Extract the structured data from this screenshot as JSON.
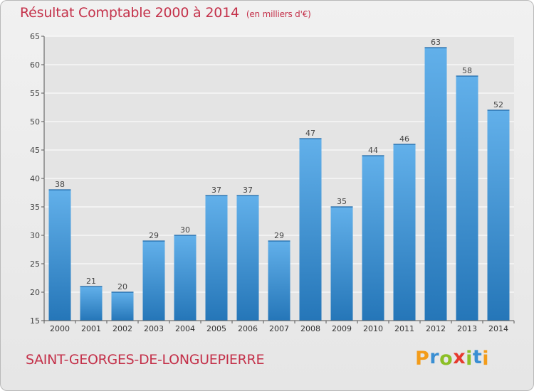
{
  "header": {
    "title": "Résultat Comptable 2000 à 2014",
    "subtitle": "(en milliers d'€)"
  },
  "footer": {
    "place": "SAINT-GEORGES-DE-LONGUEPIERRE",
    "logo_letters": [
      "P",
      "r",
      "o",
      "x",
      "i",
      "t",
      "i"
    ],
    "logo_colors": [
      "#f39c1a",
      "#3a8fd3",
      "#8cbf26",
      "#e63a2e",
      "#8cbf26",
      "#3a8fd3",
      "#f39c1a"
    ]
  },
  "colors": {
    "bar_light": "#62b0ea",
    "bar_dark": "#2576b8",
    "accent": "#c4314a",
    "grid": "#ffffff",
    "plot_bg": "#e4e4e4"
  },
  "chart_data": {
    "type": "bar",
    "categories": [
      "2000",
      "2001",
      "2002",
      "2003",
      "2004",
      "2005",
      "2006",
      "2007",
      "2008",
      "2009",
      "2010",
      "2011",
      "2012",
      "2013",
      "2014"
    ],
    "values": [
      38,
      21,
      20,
      29,
      30,
      37,
      37,
      29,
      47,
      35,
      44,
      46,
      63,
      58,
      52
    ],
    "ylim": [
      15,
      65
    ],
    "yticks": [
      15,
      20,
      25,
      30,
      35,
      40,
      45,
      50,
      55,
      60,
      65
    ],
    "grid": true,
    "data_labels": true
  }
}
